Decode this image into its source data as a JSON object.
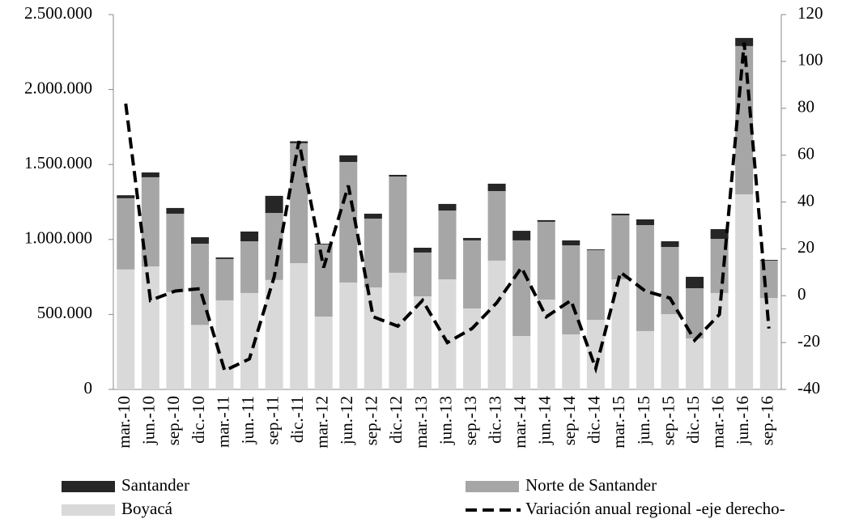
{
  "chart_data": {
    "type": "bar-line",
    "categories": [
      "mar.-10",
      "jun.-10",
      "sep.-10",
      "dic.-10",
      "mar.-11",
      "jun.-11",
      "sep.-11",
      "dic.-11",
      "mar.-12",
      "jun.-12",
      "sep.-12",
      "dic.-12",
      "mar.-13",
      "jun.-13",
      "sep.-13",
      "dic.-13",
      "mar.-14",
      "jun.-14",
      "sep.-14",
      "dic.-14",
      "mar.-15",
      "jun.-15",
      "sep.-15",
      "dic.-15",
      "mar.-16",
      "jun.-16",
      "sep.-16"
    ],
    "series": [
      {
        "name": "Boyacá",
        "color": "#d9d9d9",
        "values": [
          800000,
          820000,
          650000,
          430000,
          594000,
          643000,
          730000,
          842000,
          486000,
          713000,
          680000,
          778000,
          621000,
          734000,
          540000,
          859000,
          356000,
          599000,
          367000,
          464000,
          734000,
          389000,
          502000,
          340000,
          643000,
          1301000,
          610000
        ]
      },
      {
        "name": "Norte de Santander",
        "color": "#a6a6a6",
        "values": [
          475000,
          595000,
          522000,
          542000,
          276000,
          345000,
          447000,
          800000,
          481000,
          804000,
          459000,
          642000,
          292000,
          459000,
          454000,
          464000,
          638000,
          519000,
          594000,
          465000,
          427000,
          707000,
          448000,
          335000,
          361000,
          989000,
          249000
        ]
      },
      {
        "name": "Santander",
        "color": "#262626",
        "values": [
          20000,
          32000,
          38000,
          43000,
          10000,
          65000,
          114000,
          13000,
          5000,
          44000,
          33000,
          11000,
          32000,
          44000,
          16000,
          49000,
          64000,
          11000,
          33000,
          5000,
          11000,
          38000,
          38000,
          76000,
          65000,
          54000,
          5000
        ]
      },
      {
        "name": "Variación anual regional -eje derecho-",
        "color": "#000000",
        "axis": "y2",
        "type": "line",
        "dashed": true,
        "values": [
          82,
          -2,
          2,
          3,
          -32,
          -27,
          8,
          66,
          12,
          47,
          -9,
          -13,
          -2,
          -20,
          -14,
          -3,
          12,
          -9,
          -2,
          -31,
          10,
          2,
          -1,
          -19,
          -8,
          108,
          -14
        ]
      }
    ],
    "ylim": [
      0,
      2500000
    ],
    "yticks": [
      0,
      {
        "value": 500000,
        "label": "500.000"
      },
      {
        "value": 1000000,
        "label": "1.000.000"
      },
      {
        "value": 1500000,
        "label": "1.500.000"
      },
      {
        "value": 2000000,
        "label": "2.000.000"
      },
      {
        "value": 2500000,
        "label": "2.500.000"
      }
    ],
    "y2lim": [
      -40,
      120
    ],
    "y2ticks": [
      -40,
      -20,
      0,
      20,
      40,
      60,
      80,
      100,
      120
    ],
    "grid": false
  }
}
